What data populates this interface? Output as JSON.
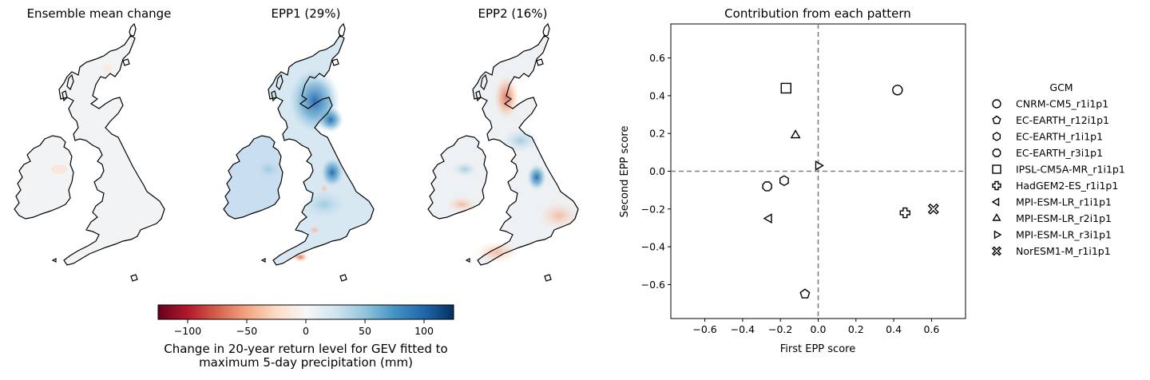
{
  "maps": [
    {
      "title": "Ensemble mean change"
    },
    {
      "title": "EPP1 (29%)"
    },
    {
      "title": "EPP2 (16%)"
    }
  ],
  "colorbar": {
    "ticks": [
      "−100",
      "−50",
      "0",
      "50",
      "100"
    ],
    "tick_values": [
      -100,
      -50,
      0,
      50,
      100
    ],
    "range": [
      -125,
      125
    ],
    "colormap": "RdBu",
    "label_line1": "Change in 20-year return level for GEV fitted to",
    "label_line2": "maximum 5-day precipitation (mm)"
  },
  "chart_data": {
    "type": "scatter",
    "title": "Contribution from each pattern",
    "xlabel": "First EPP score",
    "ylabel": "Second EPP score",
    "xlim": [
      -0.78,
      0.78
    ],
    "ylim": [
      -0.78,
      0.78
    ],
    "xticks": [
      -0.6,
      -0.4,
      -0.2,
      0.0,
      0.2,
      0.4,
      0.6
    ],
    "xtick_labels": [
      "−0.6",
      "−0.4",
      "−0.2",
      "0.0",
      "0.2",
      "0.4",
      "0.6"
    ],
    "yticks": [
      0.6,
      0.4,
      0.2,
      0.0,
      -0.2,
      -0.4,
      -0.6
    ],
    "ytick_labels": [
      "0.6",
      "0.4",
      "0.2",
      "0.0",
      "−0.2",
      "−0.4",
      "−0.6"
    ],
    "grid": false,
    "reference_lines": {
      "x": 0,
      "y": 0,
      "style": "dashed",
      "color": "#808080"
    },
    "legend_title": "GCM",
    "legend_position": "right",
    "series": [
      {
        "name": "CNRM-CM5_r1i1p1",
        "marker": "circle",
        "x": 0.42,
        "y": 0.43
      },
      {
        "name": "EC-EARTH_r12i1p1",
        "marker": "pentagon",
        "x": -0.07,
        "y": -0.65
      },
      {
        "name": "EC-EARTH_r1i1p1",
        "marker": "hexagon",
        "x": -0.18,
        "y": -0.05
      },
      {
        "name": "EC-EARTH_r3i1p1",
        "marker": "octagon",
        "x": -0.27,
        "y": -0.08
      },
      {
        "name": "IPSL-CM5A-MR_r1i1p1",
        "marker": "square",
        "x": -0.17,
        "y": 0.44
      },
      {
        "name": "HadGEM2-ES_r1i1p1",
        "marker": "plus",
        "x": 0.46,
        "y": -0.22
      },
      {
        "name": "MPI-ESM-LR_r1i1p1",
        "marker": "triangle-left",
        "x": -0.26,
        "y": -0.25
      },
      {
        "name": "MPI-ESM-LR_r2i1p1",
        "marker": "triangle-up",
        "x": -0.12,
        "y": 0.19
      },
      {
        "name": "MPI-ESM-LR_r3i1p1",
        "marker": "triangle-right",
        "x": 0.0,
        "y": 0.03
      },
      {
        "name": "NorESM1-M_r1i1p1",
        "marker": "x-filled",
        "x": 0.61,
        "y": -0.2
      }
    ]
  }
}
